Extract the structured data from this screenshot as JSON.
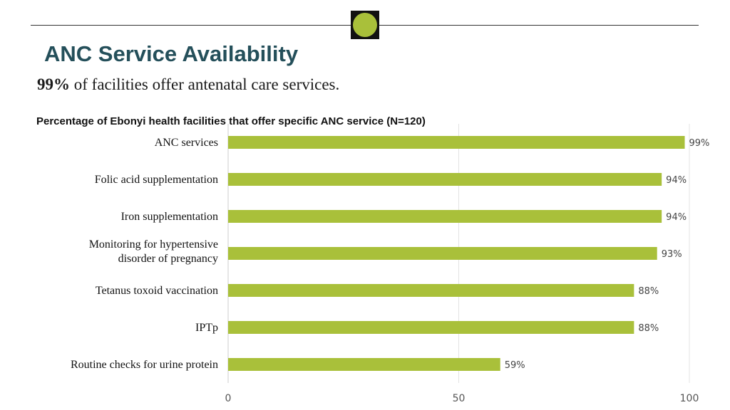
{
  "header": {
    "title": "ANC Service Availability",
    "subtitle_highlight": "99%",
    "subtitle_rest": " of facilities offer antenatal care services."
  },
  "colors": {
    "accent": "#a9c03a",
    "title": "#244f5a",
    "logo_bg": "#111111"
  },
  "chart_data": {
    "type": "bar",
    "orientation": "horizontal",
    "title": "Percentage of Ebonyi health facilities that offer specific ANC service (N=120)",
    "categories": [
      [
        "ANC services"
      ],
      [
        "Folic acid supplementation"
      ],
      [
        "Iron supplementation"
      ],
      [
        "Monitoring for hypertensive",
        "disorder of pregnancy"
      ],
      [
        "Tetanus toxoid vaccination"
      ],
      [
        "IPTp"
      ],
      [
        "Routine checks for urine protein"
      ]
    ],
    "values": [
      99,
      94,
      94,
      93,
      88,
      88,
      59
    ],
    "value_labels": [
      "99%",
      "94%",
      "94%",
      "93%",
      "88%",
      "88%",
      "59%"
    ],
    "xlim": [
      0,
      100
    ],
    "xticks": [
      0,
      50,
      100
    ],
    "grid": true,
    "bar_color": "#a9c03a"
  }
}
